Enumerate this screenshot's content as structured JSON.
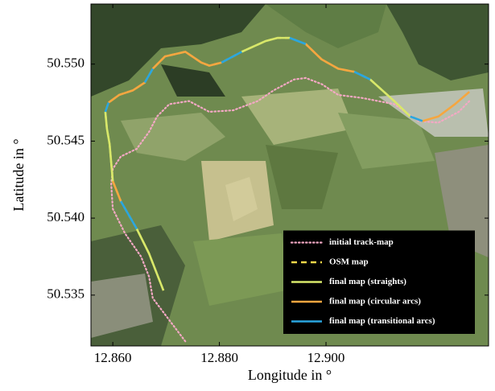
{
  "chart_data": {
    "type": "line",
    "xlabel": "Longitude in °",
    "ylabel": "Latitude in °",
    "xlim": [
      12.8559,
      12.9305
    ],
    "ylim": [
      50.5317,
      50.5539
    ],
    "xticks": [
      {
        "value": 12.86,
        "label": "12.860"
      },
      {
        "value": 12.88,
        "label": "12.880"
      },
      {
        "value": 12.9,
        "label": "12.900"
      }
    ],
    "yticks": [
      50.535,
      {
        "value": 50.54,
        "label": "50.540"
      },
      50.545,
      {
        "value": 50.55,
        "label": "50.550"
      }
    ],
    "legend": "lower right",
    "series": [
      {
        "name": "initial track-map",
        "color": "#f4a8c4",
        "style": "dotted",
        "x": [
          12.8736,
          12.8675,
          12.8668,
          12.8653,
          12.8623,
          12.86,
          12.8597,
          12.86,
          12.8615,
          12.8645,
          12.8668,
          12.8683,
          12.8706,
          12.8743,
          12.8781,
          12.8826,
          12.8872,
          12.8902,
          12.894,
          12.8962,
          12.8992,
          12.9023,
          12.9068,
          12.9128,
          12.9174,
          12.9211,
          12.9249,
          12.9269
        ],
        "y": [
          50.532,
          50.5348,
          50.5362,
          50.5375,
          50.539,
          50.5406,
          50.5422,
          50.5432,
          50.544,
          50.5445,
          50.5456,
          50.5466,
          50.5474,
          50.5476,
          50.5469,
          50.547,
          50.5476,
          50.5483,
          50.549,
          50.5491,
          50.5487,
          50.548,
          50.5478,
          50.5474,
          50.5463,
          50.5462,
          50.5469,
          50.5476
        ]
      },
      {
        "name": "OSM map",
        "color": "#f6d84a",
        "style": "dashed",
        "x": [
          12.8695,
          12.8668,
          12.8645,
          12.8615,
          12.86,
          12.8594,
          12.8589,
          12.8586,
          12.8592,
          12.8612,
          12.8638,
          12.866,
          12.8675,
          12.8698,
          12.8736,
          12.8766,
          12.8781,
          12.8804,
          12.8842,
          12.8887,
          12.8909,
          12.8932,
          12.8962,
          12.8992,
          12.9023,
          12.9053,
          12.9083,
          12.9128,
          12.9158,
          12.9181,
          12.9211,
          12.9242,
          12.9269
        ],
        "y": [
          50.5353,
          50.5377,
          50.5393,
          50.5411,
          50.5424,
          50.5448,
          50.5458,
          50.5469,
          50.5475,
          50.548,
          50.5483,
          50.5488,
          50.5497,
          50.5505,
          50.5508,
          50.5501,
          50.5499,
          50.5501,
          50.5508,
          50.5515,
          50.5517,
          50.5517,
          50.5513,
          50.5503,
          50.5497,
          50.5495,
          50.549,
          50.5476,
          50.5466,
          50.5463,
          50.5466,
          50.5474,
          50.5482
        ]
      },
      {
        "name": "final map (straights)",
        "color": "#d8e86a",
        "style": "solid",
        "x": [
          12.8695,
          12.8668,
          12.8645,
          null,
          12.86,
          12.8594,
          12.8589,
          12.8586,
          null,
          12.8842,
          12.8887,
          12.8909,
          12.8932,
          null,
          12.9083,
          12.9128,
          12.9158
        ],
        "y": [
          50.5353,
          50.5377,
          50.5393,
          null,
          50.5424,
          50.5448,
          50.5458,
          50.5469,
          null,
          50.5508,
          50.5515,
          50.5517,
          50.5517,
          null,
          50.549,
          50.5476,
          50.5466
        ]
      },
      {
        "name": "final map (circular arcs)",
        "color": "#f5a640",
        "style": "solid",
        "x": [
          12.8615,
          12.86,
          null,
          12.8592,
          12.8612,
          12.8638,
          12.866,
          null,
          12.8675,
          12.8698,
          12.8736,
          12.8766,
          12.8781,
          12.8804,
          null,
          12.8962,
          12.8992,
          12.9023,
          12.9053,
          null,
          12.9181,
          12.9211,
          12.9242,
          12.9269
        ],
        "y": [
          50.5411,
          50.5424,
          null,
          50.5475,
          50.548,
          50.5483,
          50.5488,
          null,
          50.5497,
          50.5505,
          50.5508,
          50.5501,
          50.5499,
          50.5501,
          null,
          50.5513,
          50.5503,
          50.5497,
          50.5495,
          null,
          50.5463,
          50.5466,
          50.5474,
          50.5482
        ]
      },
      {
        "name": "final map (transitional arcs)",
        "color": "#2aa6e0",
        "style": "solid",
        "x": [
          12.8645,
          12.8615,
          null,
          12.8586,
          12.8592,
          null,
          12.866,
          12.8675,
          null,
          12.8804,
          12.8842,
          null,
          12.8932,
          12.8962,
          null,
          12.9053,
          12.9083,
          null,
          12.9158,
          12.9181
        ],
        "y": [
          50.5393,
          50.5411,
          null,
          50.5469,
          50.5475,
          null,
          50.5488,
          50.5497,
          null,
          50.5501,
          50.5508,
          null,
          50.5517,
          50.5513,
          null,
          50.5495,
          50.549,
          null,
          50.5466,
          50.5463
        ]
      }
    ]
  }
}
